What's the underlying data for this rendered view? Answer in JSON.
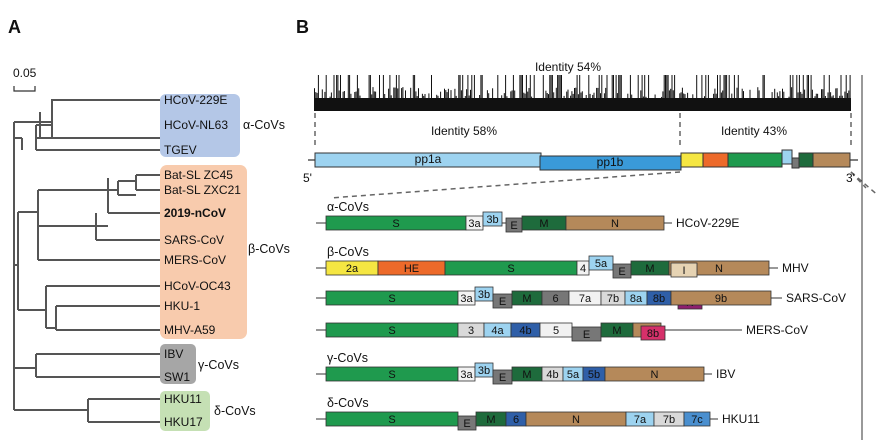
{
  "panel_a": {
    "label": "A",
    "scale_label": "0.05",
    "groups": [
      {
        "name": "α-CoVs",
        "color": "#b4c7e7",
        "leaves": [
          "HCoV-229E",
          "HCoV-NL63",
          "TGEV"
        ]
      },
      {
        "name": "β-CoVs",
        "color": "#f8cbad",
        "leaves": [
          "Bat-SL ZC45",
          "Bat-SL ZXC21",
          "2019-nCoV",
          "SARS-CoV",
          "MERS-CoV",
          "HCoV-OC43",
          "HKU-1",
          "MHV-A59"
        ]
      },
      {
        "name": "γ-CoVs",
        "color": "#a6a6a6",
        "leaves": [
          "IBV",
          "SW1"
        ]
      },
      {
        "name": "δ-CoVs",
        "color": "#c5e0b4",
        "leaves": [
          "HKU11",
          "HKU17"
        ]
      }
    ],
    "highlight_leaf": "2019-nCoV",
    "highlight_color": "#e02020"
  },
  "panel_b": {
    "label": "B",
    "identity_top": "Identity 54%",
    "identity_left": "Identity 58%",
    "identity_right": "Identity 43%",
    "end5": "5'",
    "end3": "3'",
    "pp1a": "pp1a",
    "pp1b": "pp1b",
    "genomes": [
      {
        "group": "α-CoVs",
        "name": "HCoV-229E",
        "genes": [
          "S",
          "3a",
          "3b",
          "E",
          "M",
          "N"
        ]
      },
      {
        "group": "β-CoVs",
        "name": "MHV",
        "genes": [
          "2a",
          "HE",
          "S",
          "4",
          "5a",
          "E",
          "M",
          "I",
          "N"
        ]
      },
      {
        "group": "",
        "name": "SARS-CoV",
        "genes": [
          "S",
          "3a",
          "3b",
          "E",
          "M",
          "6",
          "7a",
          "7b",
          "8a",
          "8b",
          "9b",
          "N"
        ]
      },
      {
        "group": "",
        "name": "MERS-CoV",
        "genes": [
          "S",
          "3",
          "4a",
          "4b",
          "5",
          "E",
          "M",
          "8b",
          "N"
        ]
      },
      {
        "group": "γ-CoVs",
        "name": "IBV",
        "genes": [
          "S",
          "3a",
          "3b",
          "E",
          "M",
          "4b",
          "5a",
          "5b",
          "N"
        ]
      },
      {
        "group": "δ-CoVs",
        "name": "HKU11",
        "genes": [
          "S",
          "E",
          "M",
          "6",
          "N",
          "7a",
          "7b",
          "7c"
        ]
      }
    ]
  }
}
